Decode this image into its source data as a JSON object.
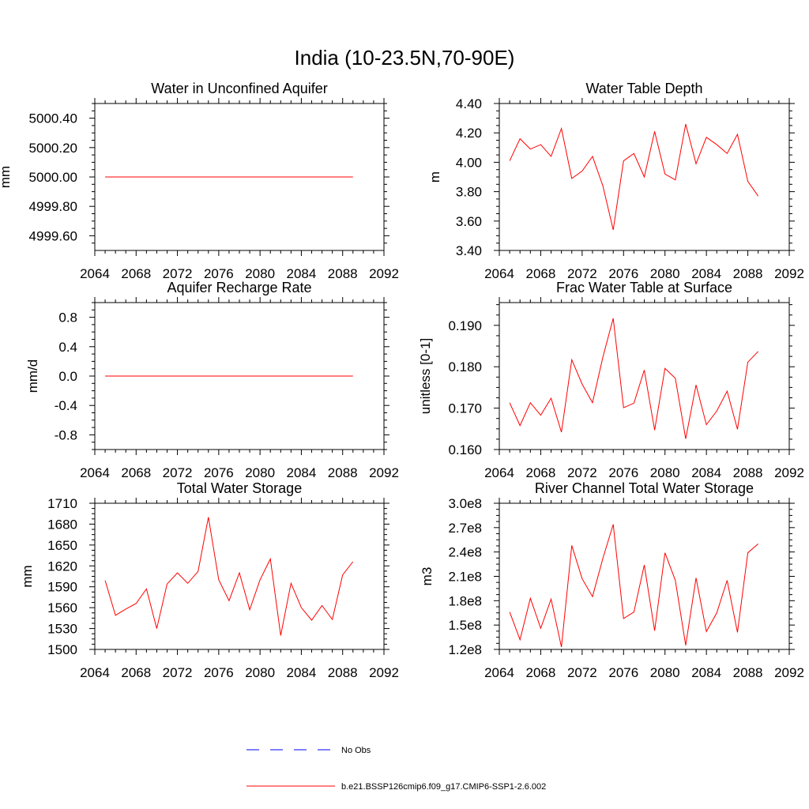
{
  "title": "India (10-23.5N,70-90E)",
  "legend": {
    "entries": [
      {
        "label": "No Obs",
        "color": "#0000ff",
        "style": "dashed"
      },
      {
        "label": "b.e21.BSSP126cmip6.f09_g17.CMIP6-SSP1-2.6.002",
        "color": "#ff0000",
        "style": "solid"
      }
    ]
  },
  "chart_data": [
    {
      "type": "line",
      "title": "Water in Unconfined Aquifer",
      "ylabel": "mm",
      "xlim": [
        2064,
        2092
      ],
      "ylim": [
        4999.5,
        5000.5
      ],
      "x_ticks": [
        "2064",
        "2068",
        "2072",
        "2076",
        "2080",
        "2084",
        "2088",
        "2092"
      ],
      "y_ticks": [
        {
          "value": 4999.6,
          "label": "4999.60"
        },
        {
          "value": 4999.8,
          "label": "4999.80"
        },
        {
          "value": 5000.0,
          "label": "5000.00"
        },
        {
          "value": 5000.2,
          "label": "5000.20"
        },
        {
          "value": 5000.4,
          "label": "5000.40"
        }
      ],
      "x": [
        2065,
        2066,
        2067,
        2068,
        2069,
        2070,
        2071,
        2072,
        2073,
        2074,
        2075,
        2076,
        2077,
        2078,
        2079,
        2080,
        2081,
        2082,
        2083,
        2084,
        2085,
        2086,
        2087,
        2088,
        2089
      ],
      "values": [
        5000,
        5000,
        5000,
        5000,
        5000,
        5000,
        5000,
        5000,
        5000,
        5000,
        5000,
        5000,
        5000,
        5000,
        5000,
        5000,
        5000,
        5000,
        5000,
        5000,
        5000,
        5000,
        5000,
        5000,
        5000
      ],
      "color": "#ff0000"
    },
    {
      "type": "line",
      "title": "Water Table Depth",
      "ylabel": "m",
      "xlim": [
        2064,
        2092
      ],
      "ylim": [
        3.4,
        4.4
      ],
      "x_ticks": [
        "2064",
        "2068",
        "2072",
        "2076",
        "2080",
        "2084",
        "2088",
        "2092"
      ],
      "y_ticks": [
        {
          "value": 3.4,
          "label": "3.40"
        },
        {
          "value": 3.6,
          "label": "3.60"
        },
        {
          "value": 3.8,
          "label": "3.80"
        },
        {
          "value": 4.0,
          "label": "4.00"
        },
        {
          "value": 4.2,
          "label": "4.20"
        },
        {
          "value": 4.4,
          "label": "4.40"
        }
      ],
      "x": [
        2065,
        2066,
        2067,
        2068,
        2069,
        2070,
        2071,
        2072,
        2073,
        2074,
        2075,
        2076,
        2077,
        2078,
        2079,
        2080,
        2081,
        2082,
        2083,
        2084,
        2085,
        2086,
        2087,
        2088,
        2089
      ],
      "values": [
        4.01,
        4.16,
        4.09,
        4.12,
        4.04,
        4.23,
        3.89,
        3.94,
        4.04,
        3.84,
        3.54,
        4.01,
        4.06,
        3.9,
        4.21,
        3.92,
        3.88,
        4.26,
        3.99,
        4.17,
        4.12,
        4.06,
        4.19,
        3.87,
        3.77
      ],
      "color": "#ff0000"
    },
    {
      "type": "line",
      "title": "Aquifer Recharge Rate",
      "ylabel": "mm/d",
      "xlim": [
        2064,
        2092
      ],
      "ylim": [
        -1.0,
        1.0
      ],
      "x_ticks": [
        "2064",
        "2068",
        "2072",
        "2076",
        "2080",
        "2084",
        "2088",
        "2092"
      ],
      "y_ticks": [
        {
          "value": -0.8,
          "label": "-0.8"
        },
        {
          "value": -0.4,
          "label": "-0.4"
        },
        {
          "value": 0.0,
          "label": "0.0"
        },
        {
          "value": 0.4,
          "label": "0.4"
        },
        {
          "value": 0.8,
          "label": "0.8"
        }
      ],
      "x": [
        2065,
        2066,
        2067,
        2068,
        2069,
        2070,
        2071,
        2072,
        2073,
        2074,
        2075,
        2076,
        2077,
        2078,
        2079,
        2080,
        2081,
        2082,
        2083,
        2084,
        2085,
        2086,
        2087,
        2088,
        2089
      ],
      "values": [
        0,
        0,
        0,
        0,
        0,
        0,
        0,
        0,
        0,
        0,
        0,
        0,
        0,
        0,
        0,
        0,
        0,
        0,
        0,
        0,
        0,
        0,
        0,
        0,
        0
      ],
      "color": "#ff0000"
    },
    {
      "type": "line",
      "title": "Frac Water Table at Surface",
      "ylabel": "unitless [0-1]",
      "xlim": [
        2064,
        2092
      ],
      "ylim": [
        0.16,
        0.1955
      ],
      "x_ticks": [
        "2064",
        "2068",
        "2072",
        "2076",
        "2080",
        "2084",
        "2088",
        "2092"
      ],
      "y_ticks": [
        {
          "value": 0.16,
          "label": "0.160"
        },
        {
          "value": 0.17,
          "label": "0.170"
        },
        {
          "value": 0.18,
          "label": "0.180"
        },
        {
          "value": 0.19,
          "label": "0.190"
        }
      ],
      "x": [
        2065,
        2066,
        2067,
        2068,
        2069,
        2070,
        2071,
        2072,
        2073,
        2074,
        2075,
        2076,
        2077,
        2078,
        2079,
        2080,
        2081,
        2082,
        2083,
        2084,
        2085,
        2086,
        2087,
        2088,
        2089
      ],
      "values": [
        0.1713,
        0.1658,
        0.1713,
        0.1683,
        0.1724,
        0.1642,
        0.1817,
        0.1758,
        0.1713,
        0.1823,
        0.1917,
        0.1701,
        0.1712,
        0.1792,
        0.1647,
        0.1796,
        0.1772,
        0.1626,
        0.1756,
        0.166,
        0.1693,
        0.1741,
        0.1649,
        0.1811,
        0.1837
      ],
      "color": "#ff0000"
    },
    {
      "type": "line",
      "title": "Total Water Storage",
      "ylabel": "mm",
      "xlim": [
        2064,
        2092
      ],
      "ylim": [
        1500,
        1710
      ],
      "x_ticks": [
        "2064",
        "2068",
        "2072",
        "2076",
        "2080",
        "2084",
        "2088",
        "2092"
      ],
      "y_ticks": [
        {
          "value": 1500,
          "label": "1500"
        },
        {
          "value": 1530,
          "label": "1530"
        },
        {
          "value": 1560,
          "label": "1560"
        },
        {
          "value": 1590,
          "label": "1590"
        },
        {
          "value": 1620,
          "label": "1620"
        },
        {
          "value": 1650,
          "label": "1650"
        },
        {
          "value": 1680,
          "label": "1680"
        },
        {
          "value": 1710,
          "label": "1710"
        }
      ],
      "x": [
        2065,
        2066,
        2067,
        2068,
        2069,
        2070,
        2071,
        2072,
        2073,
        2074,
        2075,
        2076,
        2077,
        2078,
        2079,
        2080,
        2081,
        2082,
        2083,
        2084,
        2085,
        2086,
        2087,
        2088,
        2089
      ],
      "values": [
        1599,
        1549,
        1558,
        1566,
        1587,
        1530,
        1594,
        1610,
        1595,
        1612,
        1690,
        1600,
        1570,
        1610,
        1557,
        1600,
        1630,
        1520,
        1595,
        1560,
        1542,
        1563,
        1543,
        1607,
        1626
      ],
      "color": "#ff0000"
    },
    {
      "type": "line",
      "title": "River Channel Total Water Storage",
      "ylabel": "m3",
      "xlim": [
        2064,
        2092
      ],
      "ylim": [
        120000000,
        300000000
      ],
      "x_ticks": [
        "2064",
        "2068",
        "2072",
        "2076",
        "2080",
        "2084",
        "2088",
        "2092"
      ],
      "y_ticks": [
        {
          "value": 120000000,
          "label": "1.2e8"
        },
        {
          "value": 150000000,
          "label": "1.5e8"
        },
        {
          "value": 180000000,
          "label": "1.8e8"
        },
        {
          "value": 210000000,
          "label": "2.1e8"
        },
        {
          "value": 240000000,
          "label": "2.4e8"
        },
        {
          "value": 270000000,
          "label": "2.7e8"
        },
        {
          "value": 300000000,
          "label": "3.0e8"
        }
      ],
      "x": [
        2065,
        2066,
        2067,
        2068,
        2069,
        2070,
        2071,
        2072,
        2073,
        2074,
        2075,
        2076,
        2077,
        2078,
        2079,
        2080,
        2081,
        2082,
        2083,
        2084,
        2085,
        2086,
        2087,
        2088,
        2089
      ],
      "values": [
        166000000,
        132000000,
        183000000,
        146000000,
        182000000,
        123000000,
        248000000,
        207000000,
        185000000,
        232000000,
        274000000,
        158000000,
        166000000,
        224000000,
        143000000,
        239000000,
        205000000,
        125000000,
        208000000,
        142000000,
        165000000,
        205000000,
        141000000,
        239000000,
        250000000
      ],
      "color": "#ff0000"
    }
  ]
}
